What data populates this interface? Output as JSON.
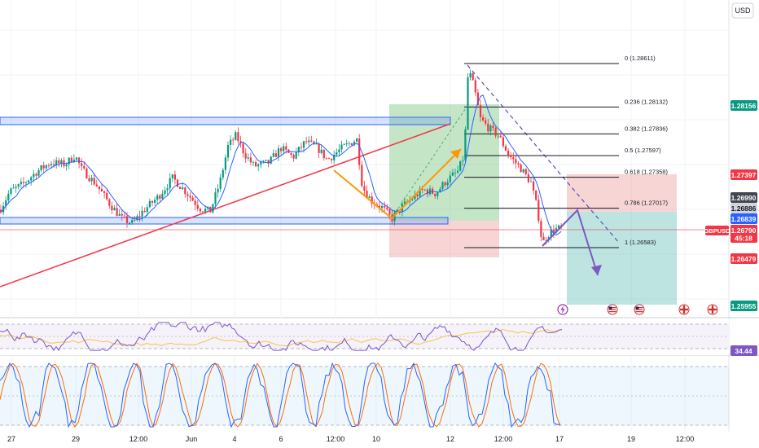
{
  "currency": "USD",
  "chart_data": {
    "type": "candlestick",
    "symbol": "GBPUSD",
    "x_tick_labels": [
      "27",
      "29",
      "12:00",
      "Jun",
      "4",
      "6",
      "12:00",
      "10",
      "12",
      "12:00",
      "17",
      "19",
      "12:00"
    ],
    "y_range": [
      1.2596,
      1.2878
    ],
    "price_labels": [
      {
        "value": "1.28156",
        "color": "#089981"
      },
      {
        "value": "1.27397",
        "color": "#f23645"
      },
      {
        "value": "1.26990",
        "color": "#434651"
      },
      {
        "value": "1.26886",
        "color": "#d1d4dc"
      },
      {
        "value": "1.26839",
        "color": "#2962ff"
      },
      {
        "value": "1.26790",
        "color": "#f23645"
      },
      {
        "value": "1.26479",
        "color": "#f23645"
      },
      {
        "value": "1.25955",
        "color": "#089981"
      }
    ],
    "symbol_badge": "GBPUSD",
    "countdown": "45:18",
    "fib_levels": [
      {
        "label": "0 (1.28611)",
        "price": 1.28611
      },
      {
        "label": "0.236 (1.28132)",
        "price": 1.28132
      },
      {
        "label": "0.382 (1.27836)",
        "price": 1.27836
      },
      {
        "label": "0.5 (1.27597)",
        "price": 1.27597
      },
      {
        "label": "0.618 (1.27358)",
        "price": 1.27358
      },
      {
        "label": "0.786 (1.27017)",
        "price": 1.27017
      },
      {
        "label": "1 (1.26583)",
        "price": 1.26583
      }
    ],
    "rsi_value": "34.44",
    "rsi_color": "#7e57c2",
    "up_color": "#089981",
    "down_color": "#f23645"
  }
}
